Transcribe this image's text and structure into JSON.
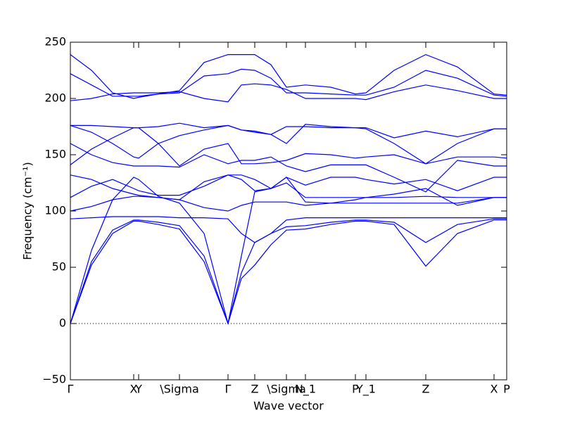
{
  "chart_data": {
    "type": "line",
    "xlabel": "Wave vector",
    "ylabel": "Frequency (cm⁻¹)",
    "xlim": [
      0,
      6.2
    ],
    "ylim": [
      -50,
      250
    ],
    "yticks": [
      {
        "value": -50,
        "label": "−50"
      },
      0,
      50,
      100,
      150,
      200,
      250
    ],
    "xticks": [
      {
        "value": 0,
        "label": "Γ"
      },
      {
        "value": 0.9,
        "label": "X"
      },
      {
        "value": 0.97,
        "label": "Y"
      },
      {
        "value": 1.55,
        "label": "\\Sigma"
      },
      {
        "value": 2.24,
        "label": "Γ"
      },
      {
        "value": 2.62,
        "label": "Z"
      },
      {
        "value": 3.07,
        "label": "\\Sigma"
      },
      {
        "value": 3.34,
        "label": "N_1"
      },
      {
        "value": 4.05,
        "label": "P"
      },
      {
        "value": 4.2,
        "label": "Y_1"
      },
      {
        "value": 5.05,
        "label": "Z"
      },
      {
        "value": 6.02,
        "label": "X"
      },
      {
        "value": 6.2,
        "label": "P"
      }
    ],
    "reference_line": 0,
    "color": "#0000ff",
    "x": [
      0,
      0.3,
      0.6,
      0.9,
      0.97,
      1.25,
      1.55,
      1.9,
      2.24,
      2.43,
      2.62,
      2.85,
      3.07,
      3.34,
      3.7,
      4.05,
      4.2,
      4.6,
      5.05,
      5.5,
      6.02,
      6.2
    ],
    "series": [
      {
        "values": [
          0,
          52,
          80,
          91,
          91,
          88,
          84,
          55,
          0,
          40,
          52,
          70,
          83,
          84,
          88,
          91,
          91,
          88,
          51,
          80,
          92,
          92
        ]
      },
      {
        "values": [
          0,
          55,
          83,
          92,
          92,
          90,
          87,
          60,
          0,
          45,
          72,
          80,
          86,
          87,
          90,
          92,
          92,
          90,
          72,
          88,
          93,
          93
        ]
      },
      {
        "values": [
          0,
          65,
          110,
          130,
          128,
          113,
          107,
          80,
          0,
          60,
          117,
          120,
          130,
          108,
          107,
          107,
          107,
          107,
          107,
          107,
          112,
          112
        ]
      },
      {
        "values": [
          93,
          94,
          95,
          95,
          95,
          95,
          94,
          94,
          93,
          80,
          72,
          80,
          92,
          94,
          94,
          94,
          94,
          94,
          94,
          94,
          94,
          94
        ]
      },
      {
        "values": [
          100,
          104,
          110,
          113,
          113,
          112,
          110,
          103,
          100,
          105,
          108,
          108,
          108,
          105,
          107,
          110,
          112,
          112,
          113,
          112,
          112,
          112
        ]
      },
      {
        "values": [
          112,
          122,
          128,
          120,
          118,
          114,
          114,
          122,
          132,
          128,
          118,
          120,
          125,
          112,
          112,
          112,
          112,
          115,
          120,
          105,
          112,
          112
        ]
      },
      {
        "values": [
          132,
          128,
          120,
          115,
          114,
          112,
          110,
          126,
          132,
          132,
          128,
          120,
          130,
          123,
          130,
          130,
          128,
          124,
          128,
          118,
          130,
          130
        ]
      },
      {
        "values": [
          141,
          155,
          165,
          174,
          174,
          160,
          140,
          155,
          160,
          142,
          142,
          143,
          145,
          151,
          150,
          147,
          148,
          150,
          142,
          148,
          148,
          147
        ]
      },
      {
        "values": [
          160,
          150,
          143,
          140,
          140,
          140,
          139,
          150,
          142,
          145,
          145,
          148,
          140,
          135,
          141,
          141,
          141,
          130,
          117,
          145,
          140,
          140
        ]
      },
      {
        "values": [
          176,
          170,
          160,
          148,
          147,
          160,
          167,
          172,
          176,
          172,
          171,
          168,
          175,
          175,
          174,
          174,
          173,
          160,
          142,
          160,
          173,
          173
        ]
      },
      {
        "values": [
          176,
          176,
          175,
          174,
          174,
          175,
          178,
          174,
          176,
          172,
          170,
          168,
          160,
          177,
          175,
          174,
          174,
          165,
          171,
          166,
          173,
          173
        ]
      },
      {
        "values": [
          198,
          200,
          204,
          205,
          205,
          205,
          206,
          200,
          197,
          212,
          213,
          212,
          208,
          200,
          200,
          200,
          199,
          206,
          212,
          207,
          200,
          200
        ]
      },
      {
        "values": [
          222,
          212,
          202,
          202,
          202,
          204,
          205,
          220,
          222,
          226,
          225,
          218,
          205,
          205,
          204,
          203,
          203,
          210,
          225,
          218,
          203,
          202
        ]
      },
      {
        "values": [
          239,
          225,
          205,
          200,
          201,
          204,
          207,
          232,
          239,
          239,
          239,
          230,
          210,
          212,
          210,
          204,
          205,
          225,
          239,
          228,
          204,
          203
        ]
      }
    ]
  }
}
